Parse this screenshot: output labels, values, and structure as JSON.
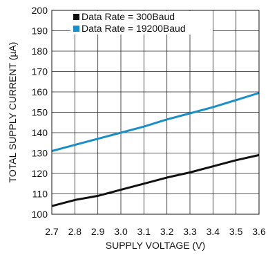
{
  "chart_data": {
    "type": "line",
    "title": "",
    "xlabel": "SUPPLY VOLTAGE (V)",
    "ylabel": "TOTAL SUPPLY CURRENT (µA)",
    "xlim": [
      2.7,
      3.6
    ],
    "ylim": [
      100,
      200
    ],
    "x_ticks": [
      "2.7",
      "2.8",
      "2.9",
      "3.0",
      "3.1",
      "3.2",
      "3.3",
      "3.4",
      "3.5",
      "3.6"
    ],
    "y_ticks": [
      "100",
      "110",
      "120",
      "130",
      "140",
      "150",
      "160",
      "170",
      "180",
      "190",
      "200"
    ],
    "grid": true,
    "legend_position": "top",
    "series": [
      {
        "name": "Data Rate = 300Baud",
        "color": "#111111",
        "x": [
          2.7,
          2.8,
          2.9,
          3.0,
          3.1,
          3.2,
          3.3,
          3.4,
          3.5,
          3.6
        ],
        "y": [
          104,
          107,
          109,
          112,
          115,
          118,
          120.5,
          123.5,
          126.5,
          129
        ]
      },
      {
        "name": "Data Rate = 19200Baud",
        "color": "#1a8ec8",
        "x": [
          2.7,
          2.8,
          2.9,
          3.0,
          3.1,
          3.2,
          3.3,
          3.4,
          3.5,
          3.6
        ],
        "y": [
          131,
          134,
          137,
          140,
          143,
          146.5,
          149.5,
          152.5,
          156,
          159.5
        ]
      }
    ]
  }
}
